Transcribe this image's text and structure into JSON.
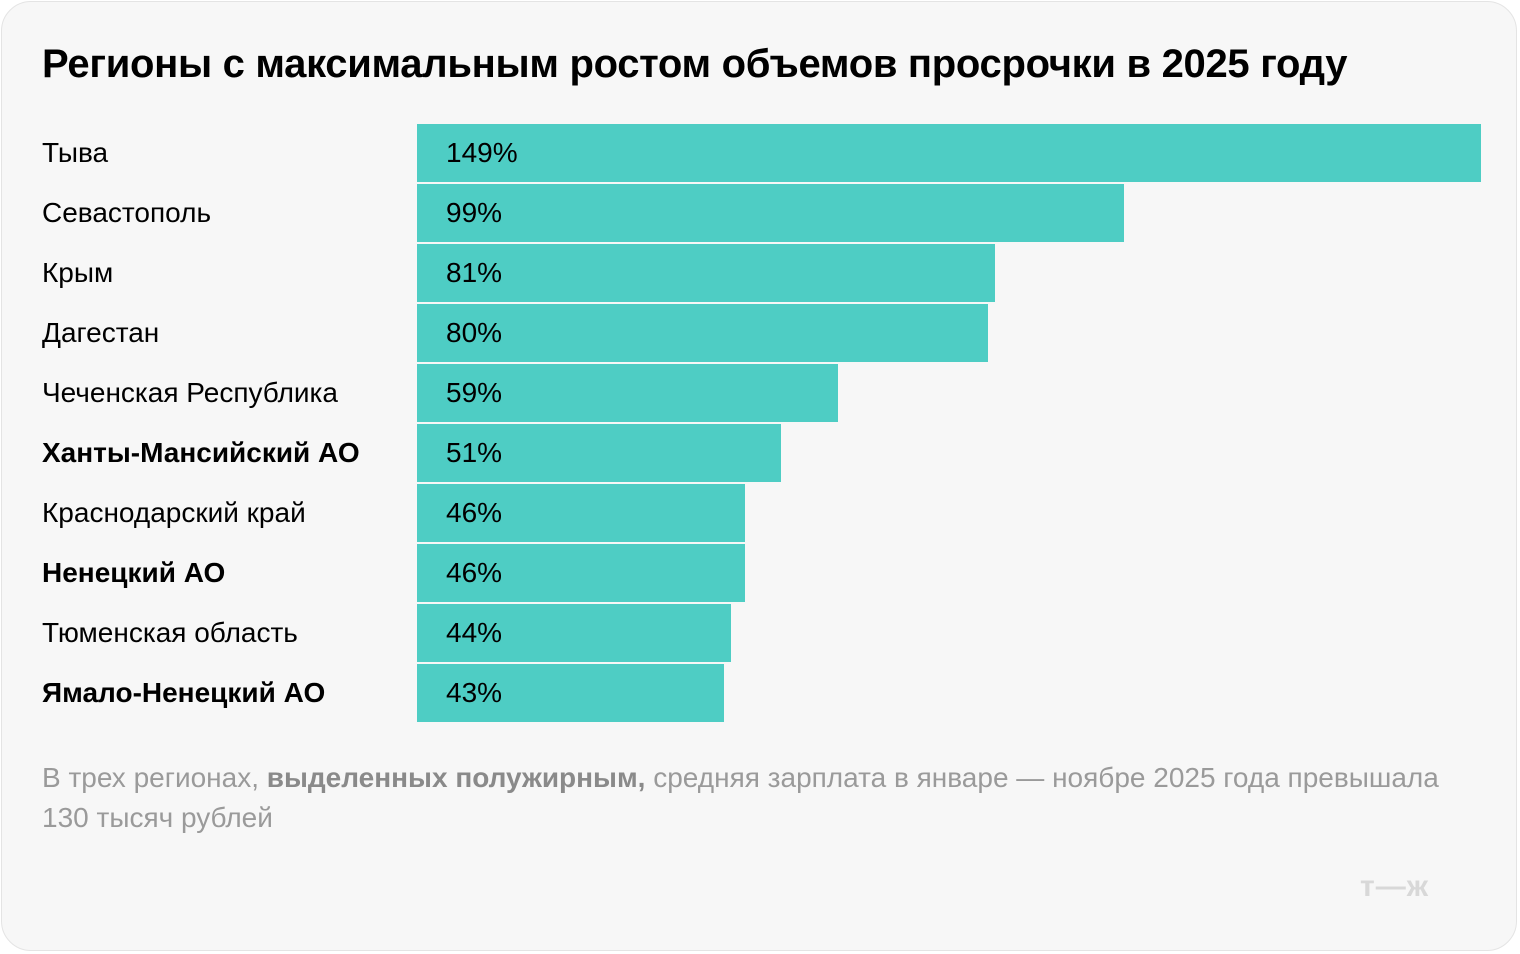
{
  "chart_data": {
    "type": "bar",
    "orientation": "horizontal",
    "title": "Регионы с максимальным ростом объемов просрочки в 2025 году",
    "categories": [
      "Тыва",
      "Севастополь",
      "Крым",
      "Дагестан",
      "Чеченская Республика",
      "Ханты-Мансийский АО",
      "Краснодарский край",
      "Ненецкий АО",
      "Тюменская область",
      "Ямало-Ненецкий АО"
    ],
    "values": [
      149,
      99,
      81,
      80,
      59,
      51,
      46,
      46,
      44,
      43
    ],
    "value_labels": [
      "149%",
      "99%",
      "81%",
      "80%",
      "59%",
      "51%",
      "46%",
      "46%",
      "44%",
      "43%"
    ],
    "bold_categories": [
      "Ханты-Мансийский АО",
      "Ненецкий АО",
      "Ямало-Ненецкий АО"
    ],
    "unit": "%",
    "xlabel": "",
    "ylabel": "",
    "xlim": [
      0,
      149
    ],
    "grid": false,
    "bar_color": "#4ecdc4"
  },
  "note": {
    "part1": "В трех регионах, ",
    "bold": "выделенных полужирным,",
    "part2": " средняя зарплата в январе — ноябре 2025 года превышала 130 тысяч рублей"
  },
  "logo": "т—ж"
}
